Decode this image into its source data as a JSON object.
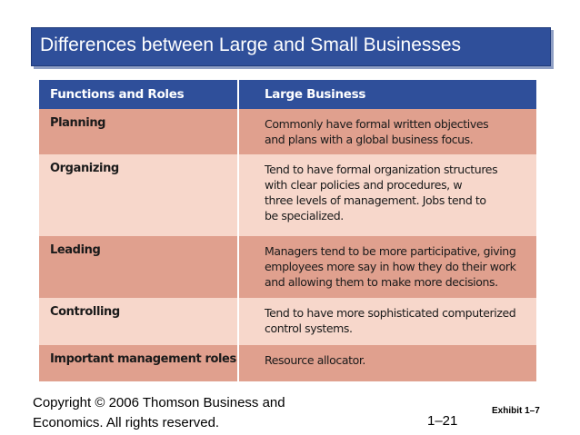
{
  "title": "Differences between Large and Small Businesses",
  "table": {
    "headers": [
      "Functions and Roles",
      "Large Business"
    ],
    "rows": [
      {
        "function": "Planning",
        "description": [
          "Commonly have formal written objectives",
          "and plans with a global business focus."
        ]
      },
      {
        "function": "Organizing",
        "description": [
          "Tend to have formal organization structures",
          "with clear policies and procedures, w",
          "three levels of management. Jobs tend to",
          "be specialized."
        ]
      },
      {
        "function": "Leading",
        "description": [
          "Managers tend to be more participative, giving",
          "employees more say in how they do their work",
          "and allowing them to make more decisions."
        ]
      },
      {
        "function": "Controlling",
        "description": [
          "Tend to have more sophisticated computerized",
          "control systems."
        ]
      },
      {
        "function": "Important management roles",
        "description": [
          "Resource allocator."
        ]
      }
    ]
  },
  "footer": {
    "copyright_line1": "Copyright © 2006 Thomson Business and",
    "copyright_line2": "Economics. All rights reserved.",
    "page_number": "1–21",
    "exhibit": "Exhibit 1–7"
  },
  "colors": {
    "header_blue": "#2f4f9a",
    "row_dark": "#e0a08e",
    "row_light": "#f7d7cb"
  }
}
